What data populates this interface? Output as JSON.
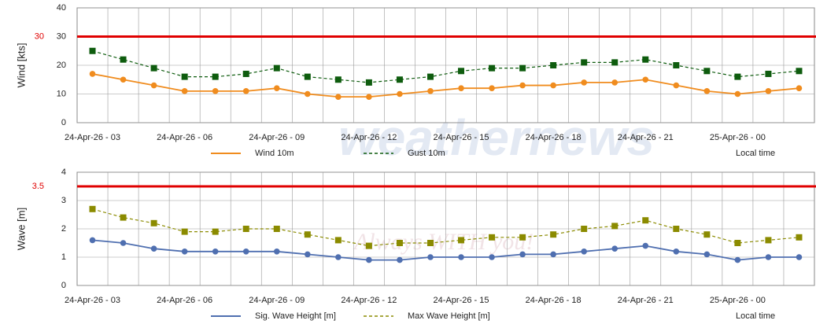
{
  "watermark": {
    "brand": "weathernews",
    "tagline": "Always WITH you!"
  },
  "chart_data": [
    {
      "type": "line",
      "y_label": "Wind [kts]",
      "x_note": "Local time",
      "categories": [
        "24-Apr-26 - 03",
        null,
        null,
        "24-Apr-26 - 06",
        null,
        null,
        "24-Apr-26 - 09",
        null,
        null,
        "24-Apr-26 - 12",
        null,
        null,
        "24-Apr-26 - 15",
        null,
        null,
        "24-Apr-26 - 18",
        null,
        null,
        "24-Apr-26 - 21",
        null,
        null,
        "25-Apr-26 - 00",
        null,
        null
      ],
      "series": [
        {
          "name": "Wind 10m",
          "color": "#f08c1e",
          "marker": "circle",
          "dash": false,
          "values": [
            17,
            15,
            13,
            11,
            11,
            11,
            12,
            10,
            9,
            9,
            10,
            11,
            12,
            12,
            13,
            13,
            14,
            14,
            15,
            13,
            11,
            10,
            11,
            12
          ]
        },
        {
          "name": "Gust 10m",
          "color": "#0e5c0e",
          "marker": "square",
          "dash": true,
          "values": [
            25,
            22,
            19,
            16,
            16,
            17,
            19,
            16,
            15,
            14,
            15,
            16,
            18,
            19,
            19,
            20,
            21,
            21,
            22,
            20,
            18,
            16,
            17,
            18
          ]
        }
      ],
      "ylim": [
        0,
        40
      ],
      "yticks": [
        0,
        10,
        20,
        30,
        40
      ],
      "grid": true,
      "threshold": 30,
      "threshold_color": "#e00000"
    },
    {
      "type": "line",
      "y_label": "Wave [m]",
      "x_note": "Local time",
      "categories": [
        "24-Apr-26 - 03",
        null,
        null,
        "24-Apr-26 - 06",
        null,
        null,
        "24-Apr-26 - 09",
        null,
        null,
        "24-Apr-26 - 12",
        null,
        null,
        "24-Apr-26 - 15",
        null,
        null,
        "24-Apr-26 - 18",
        null,
        null,
        "24-Apr-26 - 21",
        null,
        null,
        "25-Apr-26 - 00",
        null,
        null
      ],
      "series": [
        {
          "name": "Sig. Wave Height [m]",
          "color": "#4f6fb0",
          "marker": "circle",
          "dash": false,
          "values": [
            1.6,
            1.5,
            1.3,
            1.2,
            1.2,
            1.2,
            1.2,
            1.1,
            1.0,
            0.9,
            0.9,
            1.0,
            1.0,
            1.0,
            1.1,
            1.1,
            1.2,
            1.3,
            1.4,
            1.2,
            1.1,
            0.9,
            1.0,
            1.0
          ]
        },
        {
          "name": "Max Wave Height [m]",
          "color": "#8b8b00",
          "marker": "square",
          "dash": true,
          "values": [
            2.7,
            2.4,
            2.2,
            1.9,
            1.9,
            2.0,
            2.0,
            1.8,
            1.6,
            1.4,
            1.5,
            1.5,
            1.6,
            1.7,
            1.7,
            1.8,
            2.0,
            2.1,
            2.3,
            2.0,
            1.8,
            1.5,
            1.6,
            1.7
          ]
        }
      ],
      "ylim": [
        0,
        4
      ],
      "yticks": [
        0,
        1,
        2,
        3,
        4
      ],
      "grid": true,
      "threshold": 3.5,
      "threshold_color": "#e00000"
    }
  ]
}
